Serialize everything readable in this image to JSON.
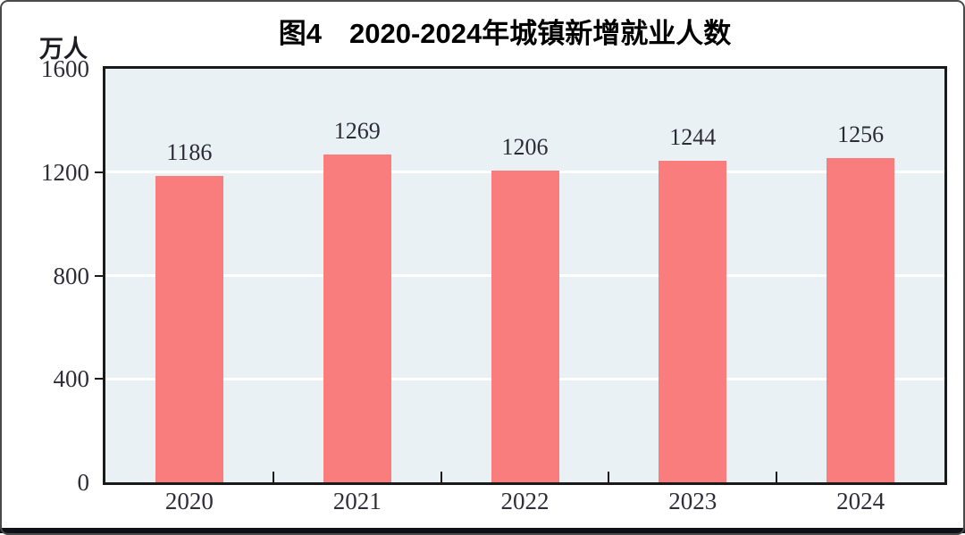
{
  "chart_data": {
    "type": "bar",
    "title": "图4　2020-2024年城镇新增就业人数",
    "unit_label": "万人",
    "categories": [
      "2020",
      "2021",
      "2022",
      "2023",
      "2024"
    ],
    "values": [
      1186,
      1269,
      1206,
      1244,
      1256
    ],
    "data_labels": [
      "1186",
      "1269",
      "1206",
      "1244",
      "1256"
    ],
    "xlabel": "",
    "ylabel": "万人",
    "ylim": [
      0,
      1600
    ],
    "yticks": [
      0,
      400,
      800,
      1200,
      1600
    ],
    "gridlines_at": [
      400,
      800,
      1200
    ],
    "grid": "horizontal-white",
    "legend": "none",
    "bar_color": "#FA7D7D",
    "plot_background": "#EAF1F5",
    "axis_color": "#1a1a1a",
    "gridline_color": "#ffffff",
    "label_color": "#2e2e38",
    "bottom_rule_color": "#101018"
  }
}
